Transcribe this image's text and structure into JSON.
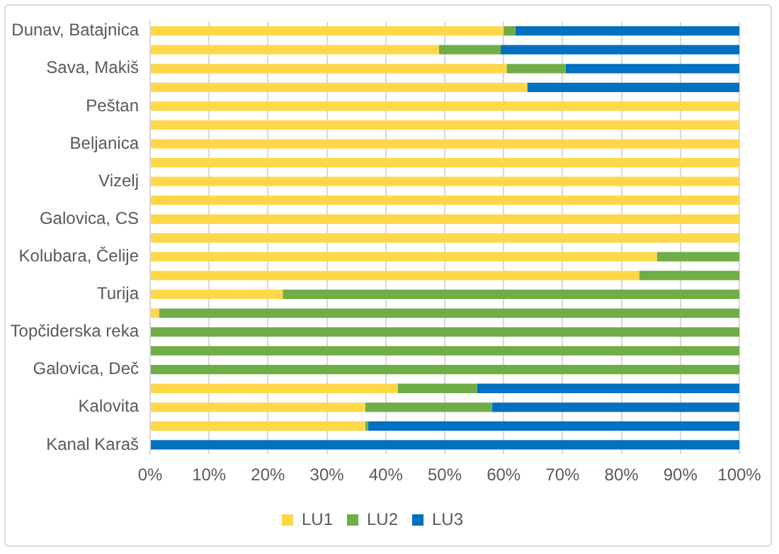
{
  "chart_data": {
    "type": "bar",
    "orientation": "horizontal",
    "stacked": true,
    "categories": [
      "Dunav, Batajnica",
      null,
      "Sava, Makiš",
      null,
      "Peštan",
      null,
      "Beljanica",
      null,
      "Vizelj",
      null,
      "Galovica, CS",
      null,
      "Kolubara, Čelije",
      null,
      "Turija",
      null,
      "Topčiderska reka",
      null,
      "Galovica, Deč",
      null,
      "Kalovita",
      null,
      "Kanal Karaš"
    ],
    "series": [
      {
        "name": "LU1",
        "color": "#ffd84a",
        "values": [
          60,
          49,
          60.5,
          64,
          100,
          100,
          100,
          100,
          100,
          100,
          100,
          100,
          86,
          83,
          22.5,
          1.5,
          0,
          0,
          0,
          42,
          36.5,
          36.5,
          0
        ]
      },
      {
        "name": "LU2",
        "color": "#70ad47",
        "values": [
          2,
          10.5,
          10,
          0,
          0,
          0,
          0,
          0,
          0,
          0,
          0,
          0,
          14,
          17,
          77.5,
          98.5,
          100,
          100,
          100,
          13.5,
          21.5,
          0.5,
          0
        ]
      },
      {
        "name": "LU3",
        "color": "#0070c0",
        "values": [
          38,
          40.5,
          29.5,
          36,
          0,
          0,
          0,
          0,
          0,
          0,
          0,
          0,
          0,
          0,
          0,
          0,
          0,
          0,
          0,
          44.5,
          42,
          63,
          100
        ]
      }
    ],
    "xlim": [
      0,
      100
    ],
    "xticks": [
      {
        "value": 0,
        "label": "0%"
      },
      {
        "value": 10,
        "label": "10%"
      },
      {
        "value": 20,
        "label": "20%"
      },
      {
        "value": 30,
        "label": "30%"
      },
      {
        "value": 40,
        "label": "40%"
      },
      {
        "value": 50,
        "label": "50%"
      },
      {
        "value": 60,
        "label": "60%"
      },
      {
        "value": 70,
        "label": "70%"
      },
      {
        "value": 80,
        "label": "80%"
      },
      {
        "value": 90,
        "label": "90%"
      },
      {
        "value": 100,
        "label": "100%"
      }
    ],
    "grid": "x",
    "legend": "bottom"
  }
}
